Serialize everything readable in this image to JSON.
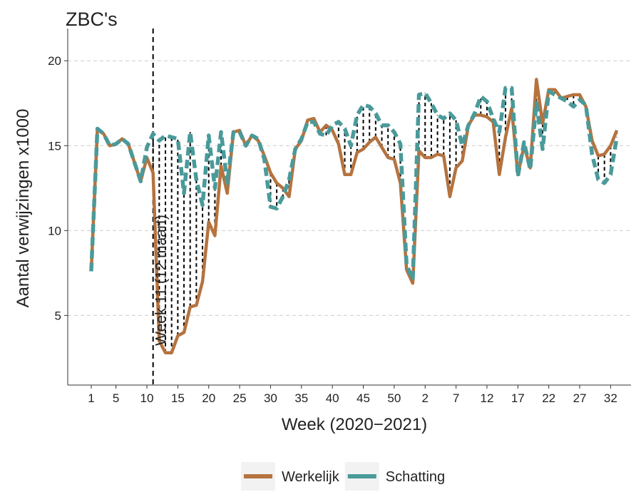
{
  "chart_data": {
    "type": "line",
    "title": "ZBC's",
    "x_label": "Week (2020−2021)",
    "y_label": "Aantal verwijzingen x1000",
    "x": [
      1,
      2,
      3,
      4,
      5,
      6,
      7,
      8,
      9,
      10,
      11,
      12,
      13,
      14,
      15,
      16,
      17,
      18,
      19,
      20,
      21,
      22,
      23,
      24,
      25,
      26,
      27,
      28,
      29,
      30,
      31,
      32,
      33,
      34,
      35,
      36,
      37,
      38,
      39,
      40,
      41,
      42,
      43,
      44,
      45,
      46,
      47,
      48,
      49,
      50,
      51,
      52,
      53,
      54,
      55,
      56,
      57,
      58,
      59,
      60,
      61,
      62,
      63,
      64,
      65,
      66,
      67,
      68,
      69,
      70,
      71,
      72,
      73,
      74,
      75,
      76,
      77,
      78,
      79,
      80,
      81,
      82,
      83,
      84,
      85,
      86
    ],
    "series": [
      {
        "name": "Werkelijk",
        "color": "#b5733f",
        "dashed": false,
        "values": [
          7.6,
          16.0,
          15.7,
          15.0,
          15.1,
          15.4,
          15.1,
          14.0,
          12.9,
          14.3,
          13.4,
          3.5,
          2.8,
          2.8,
          3.8,
          4.0,
          5.5,
          5.6,
          7.0,
          10.5,
          9.7,
          13.8,
          12.2,
          15.8,
          15.9,
          15.0,
          15.6,
          15.3,
          14.4,
          13.4,
          12.8,
          12.5,
          12.0,
          14.8,
          15.3,
          16.5,
          16.6,
          15.8,
          16.2,
          15.9,
          15.1,
          13.3,
          13.3,
          14.6,
          14.8,
          15.2,
          15.5,
          14.9,
          14.3,
          14.2,
          12.8,
          7.7,
          6.9,
          14.7,
          14.3,
          14.3,
          14.5,
          14.4,
          12.0,
          13.7,
          14.1,
          16.2,
          16.8,
          16.8,
          16.7,
          16.4,
          13.3,
          15.5,
          17.2,
          13.3,
          15.0,
          13.7,
          18.9,
          16.3,
          18.3,
          18.3,
          17.8,
          17.9,
          18.0,
          18.0,
          17.3,
          15.3,
          14.4,
          14.5,
          15.0,
          15.9
        ]
      },
      {
        "name": "Schatting",
        "color": "#4a9a9a",
        "dashed": true,
        "values": [
          7.6,
          16.0,
          15.7,
          15.0,
          15.1,
          15.4,
          15.1,
          14.0,
          12.9,
          14.9,
          15.7,
          15.3,
          15.6,
          15.5,
          15.4,
          12.2,
          15.8,
          13.0,
          11.5,
          15.6,
          12.5,
          15.8,
          12.8,
          15.8,
          15.8,
          15.0,
          15.6,
          15.4,
          14.2,
          11.4,
          11.3,
          12.0,
          13.0,
          14.8,
          15.4,
          16.4,
          16.4,
          15.7,
          15.6,
          16.2,
          16.4,
          16.0,
          15.0,
          16.8,
          17.4,
          17.3,
          16.9,
          16.2,
          16.2,
          15.8,
          15.1,
          8.0,
          7.1,
          18.0,
          18.1,
          17.5,
          16.8,
          16.6,
          16.9,
          16.5,
          15.0,
          16.2,
          16.9,
          17.9,
          17.6,
          16.6,
          15.8,
          18.4,
          18.4,
          13.2,
          15.2,
          13.6,
          17.5,
          14.8,
          18.2,
          18.0,
          17.8,
          17.6,
          17.3,
          17.7,
          17.4,
          14.5,
          13.0,
          12.8,
          13.3,
          15.5
        ]
      }
    ],
    "xlim": [
      -2.8,
      88.3
    ],
    "ylim": [
      0.9,
      21.9
    ],
    "xticks": [
      1,
      5,
      10,
      15,
      20,
      25,
      30,
      35,
      40,
      45,
      50,
      {
        "value": 55,
        "label": "2"
      },
      {
        "value": 60,
        "label": "7"
      },
      {
        "value": 65,
        "label": "12"
      },
      {
        "value": 70,
        "label": "17"
      },
      {
        "value": 75,
        "label": "22"
      },
      {
        "value": 80,
        "label": "27"
      },
      {
        "value": 85,
        "label": "32"
      }
    ],
    "yticks": [
      5,
      10,
      15,
      20
    ],
    "grid": true,
    "legend": "bottom",
    "vline": {
      "x": 11,
      "label": "Week 11 (12 maart)"
    }
  }
}
